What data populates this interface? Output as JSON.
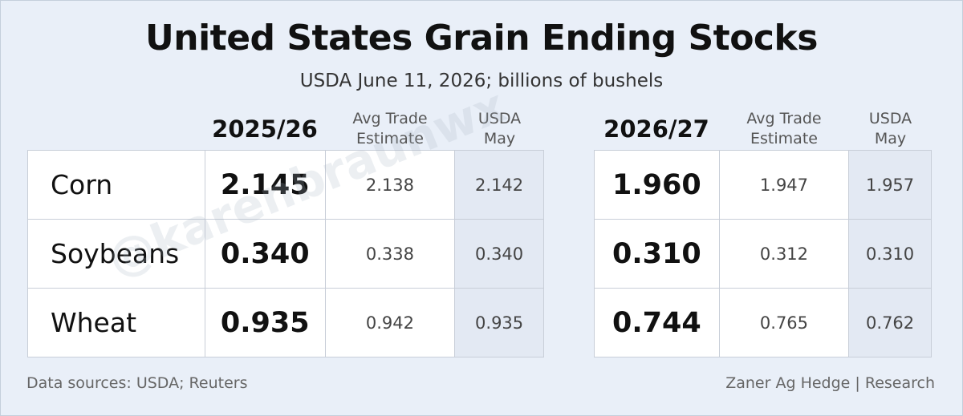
{
  "title": "United States Grain Ending Stocks",
  "subtitle": "USDA June 11, 2026; billions of bushels",
  "headers": {
    "left_year": "2025/26",
    "right_year": "2026/27",
    "avg_line1": "Avg Trade",
    "avg_line2": "Estimate",
    "usda_line1": "USDA",
    "usda_line2": "May"
  },
  "rows": [
    {
      "crop": "Corn",
      "y1": {
        "usda": "2.145",
        "avg": "2.138",
        "may": "2.142"
      },
      "y2": {
        "usda": "1.960",
        "avg": "1.947",
        "may": "1.957"
      }
    },
    {
      "crop": "Soybeans",
      "y1": {
        "usda": "0.340",
        "avg": "0.338",
        "may": "0.340"
      },
      "y2": {
        "usda": "0.310",
        "avg": "0.312",
        "may": "0.310"
      }
    },
    {
      "crop": "Wheat",
      "y1": {
        "usda": "0.935",
        "avg": "0.942",
        "may": "0.935"
      },
      "y2": {
        "usda": "0.744",
        "avg": "0.765",
        "may": "0.762"
      }
    }
  ],
  "watermark": "@karenbraunwx",
  "footer": {
    "left": "Data sources: USDA; Reuters",
    "right": "Zaner Ag Hedge | Research"
  },
  "colors": {
    "background": "#e9eff8",
    "may_column": "#e3e9f3"
  }
}
